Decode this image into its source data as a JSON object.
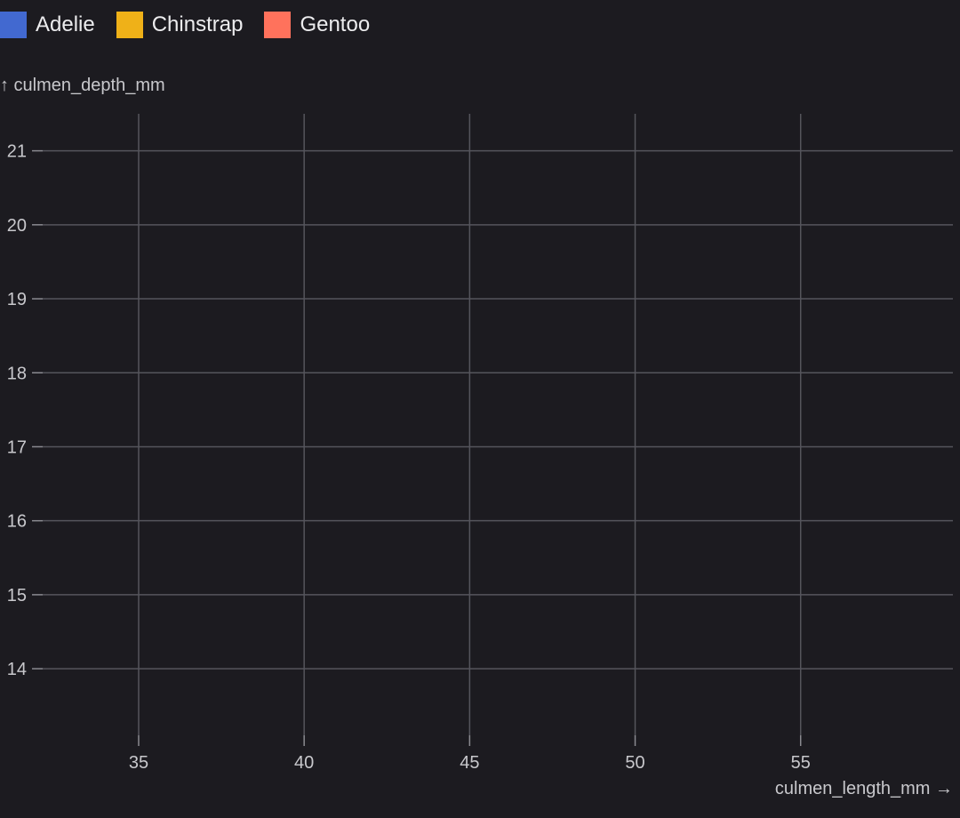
{
  "chart_data": {
    "type": "scatter",
    "legend": {
      "placement": "top-left",
      "entries": [
        {
          "name": "Adelie",
          "color": "#4269d0"
        },
        {
          "name": "Chinstrap",
          "color": "#efb118"
        },
        {
          "name": "Gentoo",
          "color": "#ff725c"
        }
      ]
    },
    "xlabel": "culmen_length_mm →",
    "ylabel": "↑ culmen_depth_mm",
    "x_ticks": [
      35,
      40,
      45,
      50,
      55
    ],
    "y_ticks": [
      14,
      15,
      16,
      17,
      18,
      19,
      20,
      21
    ],
    "xlim": [
      32.1,
      59.6
    ],
    "ylim": [
      13.1,
      21.5
    ],
    "grid": true,
    "series": [
      {
        "name": "Adelie",
        "color": "#4269d0",
        "points": []
      },
      {
        "name": "Chinstrap",
        "color": "#efb118",
        "points": []
      },
      {
        "name": "Gentoo",
        "color": "#ff725c",
        "points": []
      }
    ]
  }
}
